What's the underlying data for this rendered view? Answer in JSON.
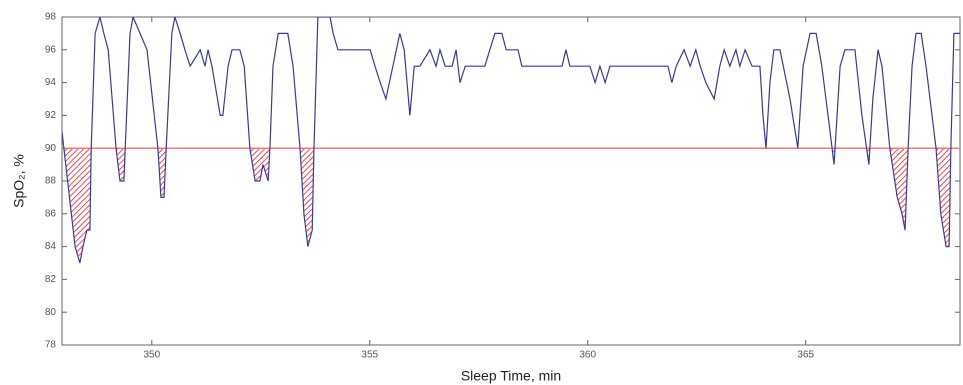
{
  "chart_data": {
    "type": "line",
    "xlabel": "Sleep Time, min",
    "ylabel": "SpO₂, %",
    "x": [
      347.94,
      348.24,
      348.35,
      348.42,
      348.51,
      348.58,
      348.61,
      348.7,
      348.81,
      348.9,
      349.0,
      349.18,
      349.27,
      349.36,
      349.39,
      349.5,
      349.57,
      349.73,
      349.89,
      350.14,
      350.21,
      350.28,
      350.33,
      350.46,
      350.53,
      350.65,
      350.76,
      350.88,
      351.11,
      351.22,
      351.29,
      351.38,
      351.57,
      351.63,
      351.75,
      351.84,
      352.02,
      352.12,
      352.25,
      352.37,
      352.48,
      352.55,
      352.67,
      352.71,
      352.78,
      352.9,
      353.12,
      353.24,
      353.4,
      353.49,
      353.58,
      353.68,
      353.72,
      353.81,
      354.09,
      354.16,
      354.27,
      355.01,
      355.12,
      355.24,
      355.37,
      355.53,
      355.69,
      355.79,
      355.92,
      356.02,
      356.15,
      356.38,
      356.52,
      356.61,
      356.73,
      356.89,
      356.98,
      357.07,
      357.19,
      357.64,
      357.87,
      358.03,
      358.13,
      358.4,
      358.49,
      359.41,
      359.5,
      359.59,
      360.05,
      360.17,
      360.28,
      360.4,
      360.51,
      361.84,
      361.93,
      362.03,
      362.21,
      362.35,
      362.48,
      362.58,
      362.71,
      362.9,
      363.03,
      363.13,
      363.26,
      363.4,
      363.49,
      363.61,
      363.77,
      363.95,
      364.02,
      364.09,
      364.18,
      364.27,
      364.41,
      364.64,
      364.82,
      364.94,
      365.1,
      365.24,
      365.37,
      365.56,
      365.65,
      365.79,
      365.9,
      366.13,
      366.29,
      366.45,
      366.54,
      366.66,
      366.75,
      366.93,
      367.1,
      367.21,
      367.28,
      367.35,
      367.44,
      367.53,
      367.65,
      367.76,
      367.99,
      368.1,
      368.22,
      368.29,
      368.33,
      368.4,
      368.54
    ],
    "series": [
      {
        "name": "SpO2",
        "color": "#3a3a96",
        "values": [
          91,
          84,
          83,
          84,
          85,
          85,
          90,
          97,
          98,
          97,
          96,
          90,
          88,
          88,
          90,
          97,
          98,
          97,
          96,
          90,
          87,
          87,
          90,
          97,
          98,
          97,
          96,
          95,
          96,
          95,
          96,
          95,
          92,
          92,
          95,
          96,
          96,
          95,
          90,
          88,
          88,
          89,
          88,
          90,
          95,
          97,
          97,
          95,
          90,
          86,
          84,
          85,
          90,
          98,
          98,
          97,
          96,
          96,
          95,
          94,
          93,
          95,
          97,
          96,
          92,
          95,
          95,
          96,
          95,
          96,
          95,
          95,
          96,
          94,
          95,
          95,
          97,
          97,
          96,
          96,
          95,
          95,
          96,
          95,
          95,
          94,
          95,
          94,
          95,
          95,
          94,
          95,
          96,
          95,
          96,
          95,
          94,
          93,
          95,
          96,
          95,
          96,
          95,
          96,
          95,
          95,
          92,
          90,
          94,
          96,
          96,
          93,
          90,
          95,
          97,
          97,
          95,
          91,
          89,
          95,
          96,
          96,
          92,
          89,
          93,
          96,
          95,
          90,
          87,
          86,
          85,
          90,
          95,
          97,
          97,
          95,
          90,
          86,
          84,
          84,
          90,
          97,
          97
        ]
      }
    ],
    "threshold": 90,
    "threshold_color": "#f07a7a",
    "hatch_color": "#e0202a",
    "xlim": [
      347.94,
      368.54
    ],
    "xticks": [
      350,
      355,
      360,
      365
    ],
    "ylim": [
      78,
      98
    ],
    "yticks": [
      78,
      80,
      82,
      84,
      86,
      88,
      90,
      92,
      94,
      96,
      98
    ]
  }
}
